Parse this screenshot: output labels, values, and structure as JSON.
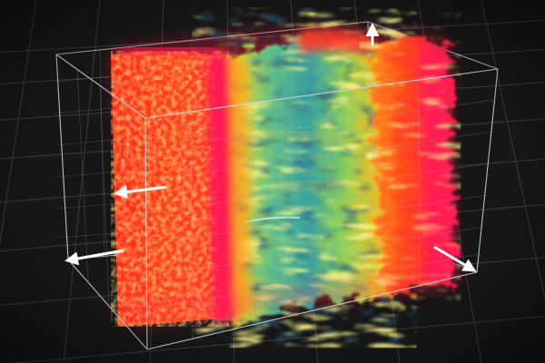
{
  "scene": {
    "background_color": "#161616",
    "floor_grid": {
      "visible": true,
      "line_color": "#5a5a5a"
    },
    "bounding_box": {
      "visible": true,
      "line_color": "#d8d8d8",
      "inner_grid_color": "#9a9a9a"
    },
    "volume_render": {
      "colormap": [
        "#0b2233",
        "#2a8a8a",
        "#66c07a",
        "#c8d23a",
        "#f0a020",
        "#ff4a1a",
        "#ff1a4a"
      ],
      "regions": [
        {
          "name": "left-hot-slab",
          "dominant_color": "#ff3b1d"
        },
        {
          "name": "center-turbulent-mixing-zone",
          "dominant_color": "#48b89a"
        },
        {
          "name": "right-hot-slab",
          "dominant_color": "#ff4a22"
        }
      ]
    },
    "axis_arrows": [
      {
        "name": "arrow-up",
        "color": "#ffffff"
      },
      {
        "name": "arrow-left-upper",
        "color": "#ffffff"
      },
      {
        "name": "arrow-left-lower",
        "color": "#ffffff"
      },
      {
        "name": "arrow-right-lower",
        "color": "#ffffff"
      }
    ]
  }
}
